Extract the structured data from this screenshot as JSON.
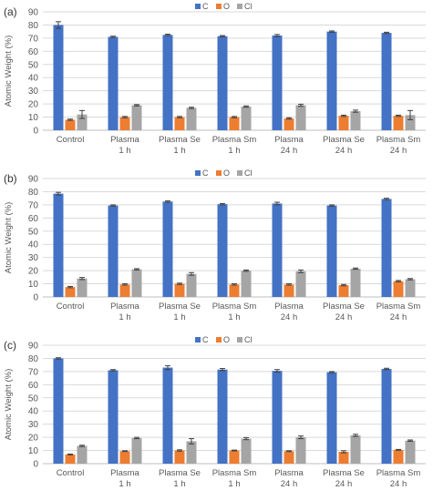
{
  "series_colors": {
    "C": "#4472C4",
    "O": "#ED7D31",
    "Cl": "#A5A5A5"
  },
  "chart_data": [
    {
      "type": "bar",
      "panel_label": "(a)",
      "categories": [
        [
          "Control"
        ],
        [
          "Plasma",
          "1 h"
        ],
        [
          "Plasma Se",
          "1 h"
        ],
        [
          "Plasma Sm",
          "1 h"
        ],
        [
          "Plasma",
          "24 h"
        ],
        [
          "Plasma Se",
          "24 h"
        ],
        [
          "Plasma Sm",
          "24 h"
        ]
      ],
      "series": [
        {
          "name": "C",
          "values": [
            80,
            71,
            72.5,
            71.5,
            72,
            75,
            74
          ],
          "errors": [
            2.5,
            0.5,
            0.5,
            0.5,
            0.8,
            0.5,
            0.5
          ]
        },
        {
          "name": "O",
          "values": [
            8,
            10,
            10,
            10,
            9,
            11,
            11
          ],
          "errors": [
            0.5,
            0.5,
            0.5,
            0.5,
            0.5,
            0.5,
            0.5
          ]
        },
        {
          "name": "Cl",
          "values": [
            12,
            19,
            17,
            18,
            19,
            14.5,
            11.5
          ],
          "errors": [
            3,
            0.5,
            0.5,
            0.5,
            0.8,
            0.8,
            3.5
          ]
        }
      ],
      "ylabel": "Atomic Weight (%)",
      "ylim": [
        0,
        90
      ],
      "yticks": [
        0,
        10,
        20,
        30,
        40,
        50,
        60,
        70,
        80,
        90
      ],
      "grid": true,
      "legend": "top-center"
    },
    {
      "type": "bar",
      "panel_label": "(b)",
      "categories": [
        [
          "Control"
        ],
        [
          "Plasma",
          "1 h"
        ],
        [
          "Plasma Se",
          "1 h"
        ],
        [
          "Plasma Sm",
          "1 h"
        ],
        [
          "Plasma",
          "24 h"
        ],
        [
          "Plasma Se",
          "24 h"
        ],
        [
          "Plasma Sm",
          "24 h"
        ]
      ],
      "series": [
        {
          "name": "C",
          "values": [
            78.5,
            69.5,
            72.5,
            70.5,
            71,
            69.5,
            74.5
          ],
          "errors": [
            1,
            0.5,
            0.5,
            0.5,
            1,
            0.5,
            0.5
          ]
        },
        {
          "name": "O",
          "values": [
            7.5,
            9.5,
            10,
            9.5,
            9.5,
            9,
            12
          ],
          "errors": [
            0.5,
            0.5,
            0.5,
            0.5,
            0.5,
            0.5,
            0.5
          ]
        },
        {
          "name": "Cl",
          "values": [
            14,
            21,
            17.5,
            20,
            19.5,
            21.5,
            13.5
          ],
          "errors": [
            0.8,
            0.5,
            1,
            0.5,
            1,
            0.5,
            0.5
          ]
        }
      ],
      "ylabel": "Atomic Weight (%)",
      "ylim": [
        0,
        90
      ],
      "yticks": [
        0,
        10,
        20,
        30,
        40,
        50,
        60,
        70,
        80,
        90
      ],
      "grid": true,
      "legend": "top-center"
    },
    {
      "type": "bar",
      "panel_label": "(c)",
      "categories": [
        [
          "Control"
        ],
        [
          "Plasma",
          "1 h"
        ],
        [
          "Plasma Se",
          "1 h"
        ],
        [
          "Plasma Sm",
          "1 h"
        ],
        [
          "Plasma",
          "24 h"
        ],
        [
          "Plasma Se",
          "24 h"
        ],
        [
          "Plasma Sm",
          "24 h"
        ]
      ],
      "series": [
        {
          "name": "C",
          "values": [
            80,
            71,
            73,
            71.5,
            70.5,
            69.5,
            72
          ],
          "errors": [
            0.5,
            0.5,
            1.5,
            0.8,
            1,
            0.5,
            0.5
          ]
        },
        {
          "name": "O",
          "values": [
            7,
            9.5,
            10,
            10,
            9.5,
            9,
            10.5
          ],
          "errors": [
            0.3,
            0.3,
            0.5,
            0.3,
            0.3,
            0.8,
            0.3
          ]
        },
        {
          "name": "Cl",
          "values": [
            13.5,
            19.5,
            17,
            19,
            20,
            21.5,
            17.5
          ],
          "errors": [
            0.5,
            0.5,
            2,
            0.8,
            1,
            0.8,
            0.5
          ]
        }
      ],
      "ylabel": "Atomic Weight (%)",
      "ylim": [
        0,
        90
      ],
      "yticks": [
        0,
        10,
        20,
        30,
        40,
        50,
        60,
        70,
        80,
        90
      ],
      "grid": true,
      "legend": "top-center"
    }
  ]
}
